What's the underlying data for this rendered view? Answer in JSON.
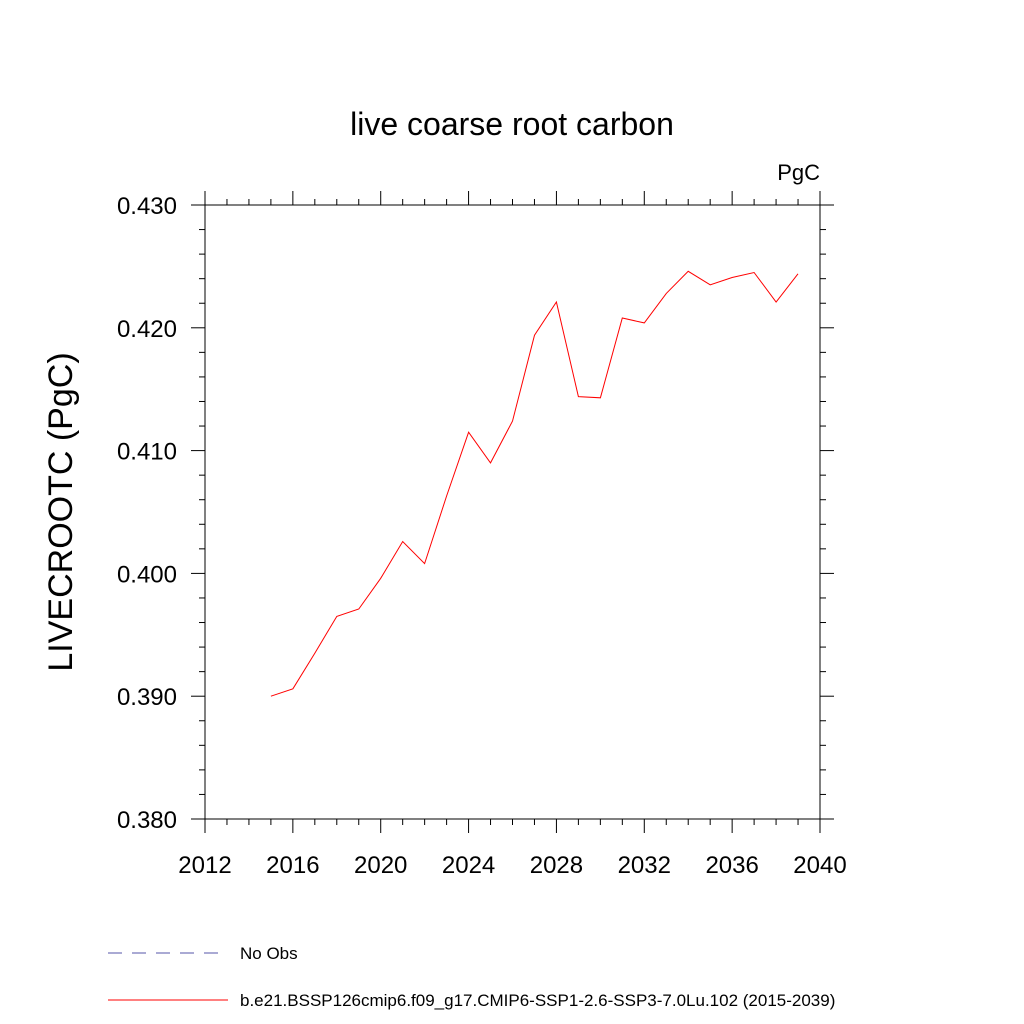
{
  "chart_data": {
    "type": "line",
    "title": "live coarse root carbon",
    "units_label": "PgC",
    "ylabel": "LIVECROOTC  (PgC)",
    "xlabel": "",
    "xlim": [
      2012,
      2040
    ],
    "ylim": [
      0.38,
      0.43
    ],
    "x_ticks": [
      "2012",
      "2016",
      "2020",
      "2024",
      "2028",
      "2032",
      "2036",
      "2040"
    ],
    "y_ticks": [
      "0.380",
      "0.390",
      "0.400",
      "0.410",
      "0.420",
      "0.430"
    ],
    "grid": false,
    "legend_position": "bottom-left",
    "series": [
      {
        "name": "b.e21.BSSP126cmip6.f09_g17.CMIP6-SSP1-2.6-SSP3-7.0Lu.102 (2015-2039)",
        "color": "#ff0000",
        "style": "solid",
        "x": [
          2015,
          2016,
          2017,
          2018,
          2019,
          2020,
          2021,
          2022,
          2023,
          2024,
          2025,
          2026,
          2027,
          2028,
          2029,
          2030,
          2031,
          2032,
          2033,
          2034,
          2035,
          2036,
          2037,
          2038,
          2039
        ],
        "values": [
          0.39,
          0.3906,
          0.3935,
          0.3965,
          0.3971,
          0.3996,
          0.4026,
          0.4008,
          0.4063,
          0.4115,
          0.409,
          0.4124,
          0.4194,
          0.4221,
          0.4144,
          0.4143,
          0.4208,
          0.4204,
          0.4228,
          0.4246,
          0.4235,
          0.4241,
          0.4245,
          0.4221,
          0.4244
        ]
      }
    ],
    "legend": [
      {
        "label": "No Obs",
        "color": "#5555aa",
        "style": "dashed"
      },
      {
        "label": "b.e21.BSSP126cmip6.f09_g17.CMIP6-SSP1-2.6-SSP3-7.0Lu.102 (2015-2039)",
        "color": "#ff0000",
        "style": "solid"
      }
    ]
  }
}
